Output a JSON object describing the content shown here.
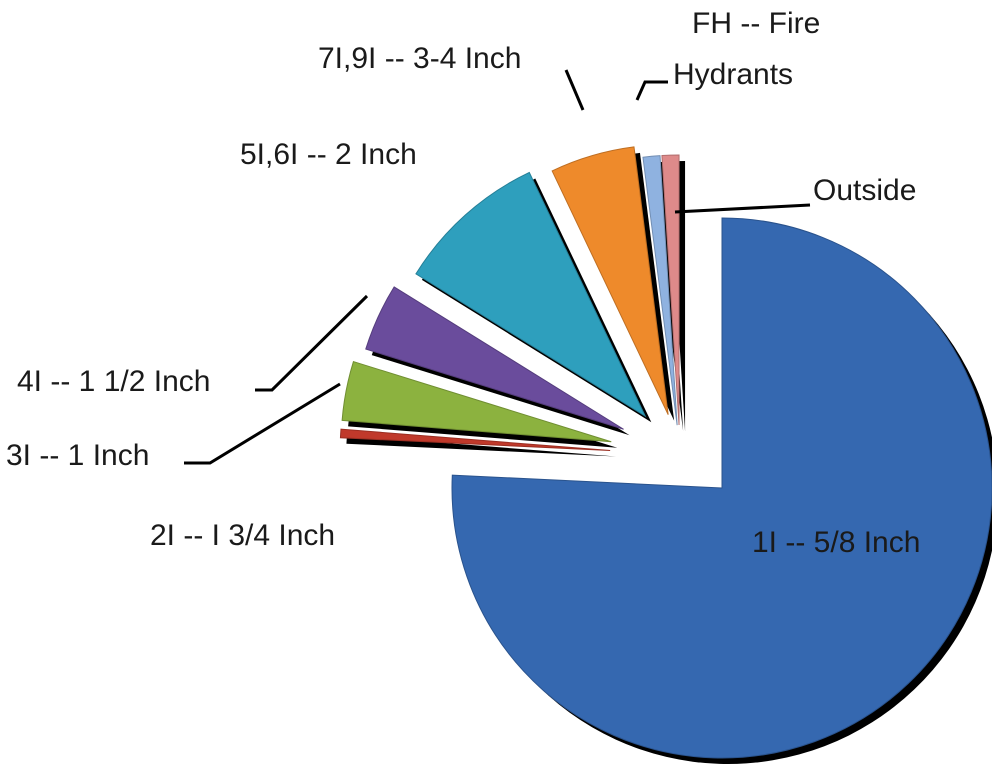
{
  "chart_data": {
    "type": "pie",
    "title": "",
    "exploded": true,
    "three_d_shadow": true,
    "labels_outside": true,
    "series": [
      {
        "label": "1I --  5/8 Inch",
        "value": 75.0,
        "color": "#3568b0"
      },
      {
        "label": "2I -- I  3/4 Inch",
        "value": 0.5,
        "color": "#c0392b"
      },
      {
        "label": "3I -- 1 Inch",
        "value": 3.5,
        "color": "#8cb23f"
      },
      {
        "label": "4I -- 1 1/2 Inch",
        "value": 4.0,
        "color": "#6a4c9c"
      },
      {
        "label": "5I,6I -- 2 Inch",
        "value": 9.0,
        "color": "#2e9fbd"
      },
      {
        "label": "7I,9I -- 3-4 Inch",
        "value": 5.0,
        "color": "#ee8a2b"
      },
      {
        "label": "FH -- Fire Hydrants",
        "value": 1.0,
        "color": "#8fb2e0",
        "lines": [
          "FH -- Fire",
          "Hydrants"
        ]
      },
      {
        "label": "Outside",
        "value": 1.0,
        "color": "#de8a8a"
      }
    ]
  }
}
